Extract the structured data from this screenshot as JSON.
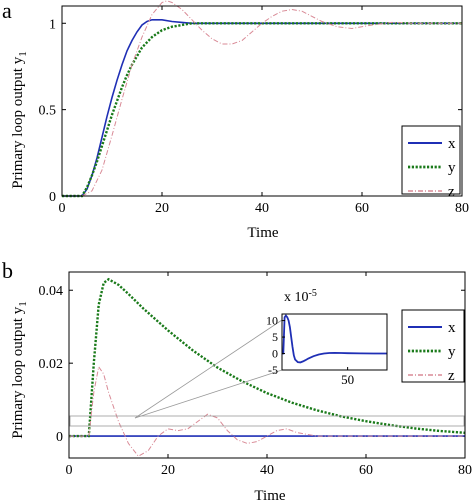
{
  "chart_data": [
    {
      "panel_letter": "a",
      "type": "line",
      "xlabel": "Time",
      "ylabel_main": "Primary loop output y",
      "ylabel_sub": "1",
      "xlim": [
        0,
        80
      ],
      "ylim": [
        0,
        1.1
      ],
      "xticks": [
        0,
        20,
        40,
        60,
        80
      ],
      "yticks": [
        0,
        0.5,
        1
      ],
      "ytick_labels": [
        "0",
        "0.5",
        "1"
      ],
      "legend": "right",
      "series": [
        {
          "name": "x",
          "color": "#1f2fb5",
          "style": "solid",
          "x": [
            0,
            4,
            5,
            6,
            7,
            8,
            9,
            10,
            11,
            12,
            13,
            14,
            15,
            16,
            17,
            18,
            19,
            20,
            22,
            24,
            26,
            28,
            30,
            35,
            40,
            80
          ],
          "y": [
            0,
            0,
            0.04,
            0.12,
            0.22,
            0.34,
            0.46,
            0.57,
            0.67,
            0.76,
            0.84,
            0.9,
            0.95,
            0.99,
            1.01,
            1.02,
            1.02,
            1.02,
            1.01,
            1.005,
            1.0,
            1.0,
            1.0,
            1.0,
            1.0,
            1.0
          ]
        },
        {
          "name": "y",
          "color": "#1a7a1a",
          "style": "dotted",
          "x": [
            0,
            4,
            5,
            6,
            7,
            8,
            9,
            10,
            11,
            12,
            13,
            14,
            15,
            16,
            17,
            18,
            19,
            20,
            22,
            24,
            26,
            28,
            30,
            35,
            40,
            80
          ],
          "y": [
            0,
            0,
            0.05,
            0.12,
            0.2,
            0.29,
            0.38,
            0.47,
            0.55,
            0.63,
            0.7,
            0.76,
            0.81,
            0.86,
            0.89,
            0.92,
            0.94,
            0.96,
            0.98,
            0.99,
            1.0,
            1.0,
            1.0,
            1.0,
            1.0,
            1.0
          ]
        },
        {
          "name": "z",
          "color": "#d98a96",
          "style": "dashdot",
          "x": [
            0,
            4,
            6,
            8,
            10,
            12,
            14,
            16,
            18,
            20,
            21,
            22,
            24,
            26,
            28,
            30,
            32,
            34,
            36,
            38,
            40,
            42,
            44,
            46,
            48,
            50,
            52,
            55,
            58,
            62,
            66,
            70,
            80
          ],
          "y": [
            0,
            0,
            0.03,
            0.15,
            0.35,
            0.56,
            0.76,
            0.92,
            1.05,
            1.12,
            1.13,
            1.12,
            1.08,
            1.02,
            0.96,
            0.91,
            0.88,
            0.88,
            0.9,
            0.95,
            1.0,
            1.04,
            1.07,
            1.08,
            1.07,
            1.04,
            1.01,
            0.98,
            0.97,
            0.99,
            1.005,
            1.0,
            1.0
          ]
        }
      ]
    },
    {
      "panel_letter": "b",
      "type": "line",
      "xlabel": "Time",
      "ylabel_main": "Primary loop output y",
      "ylabel_sub": "1",
      "xlim": [
        0,
        80
      ],
      "ylim": [
        -0.006,
        0.045
      ],
      "xticks": [
        0,
        20,
        40,
        60,
        80
      ],
      "yticks": [
        0,
        0.02,
        0.04
      ],
      "ytick_labels": [
        "0",
        "0.02",
        "0.04"
      ],
      "legend": "right",
      "series": [
        {
          "name": "x",
          "color": "#1f2fb5",
          "style": "solid",
          "x": [
            0,
            80
          ],
          "y": [
            0,
            0
          ]
        },
        {
          "name": "y",
          "color": "#1a7a1a",
          "style": "dotted",
          "x": [
            0,
            4,
            5,
            6,
            7,
            8,
            10,
            12,
            15,
            20,
            25,
            30,
            35,
            40,
            45,
            50,
            55,
            60,
            65,
            70,
            75,
            80
          ],
          "y": [
            0,
            0,
            0.02,
            0.036,
            0.042,
            0.043,
            0.0415,
            0.039,
            0.035,
            0.029,
            0.0235,
            0.0188,
            0.015,
            0.0118,
            0.0092,
            0.0071,
            0.0054,
            0.0041,
            0.003,
            0.0021,
            0.0014,
            0.0009
          ]
        },
        {
          "name": "z",
          "color": "#d98a96",
          "style": "dashdot",
          "x": [
            0,
            4,
            5,
            6,
            7,
            8,
            10,
            12,
            14,
            16,
            18,
            20,
            22,
            24,
            26,
            28,
            30,
            32,
            34,
            36,
            38,
            40,
            42,
            44,
            46,
            48,
            50,
            55,
            60,
            65,
            70,
            80
          ],
          "y": [
            0,
            0,
            0.012,
            0.019,
            0.017,
            0.012,
            0.004,
            -0.002,
            -0.0055,
            -0.004,
            0,
            0.002,
            0.0015,
            0.002,
            0.004,
            0.006,
            0.005,
            0.0015,
            -0.001,
            -0.002,
            -0.0015,
            0,
            0.0015,
            0.002,
            0.001,
            0.0005,
            0,
            0,
            0,
            0,
            0,
            0
          ]
        }
      ],
      "inset": {
        "tick_exponent_label": "x 10",
        "tick_exponent_power": "-5",
        "xlim": [
          0,
          80
        ],
        "ylim": [
          -5,
          12
        ],
        "xticks": [
          50
        ],
        "yticks": [
          -5,
          0,
          5,
          10
        ],
        "series": [
          {
            "name": "x",
            "color": "#1f2fb5",
            "style": "solid",
            "x": [
              0,
              1,
              2,
              3,
              4,
              5,
              6,
              7,
              8,
              9,
              10,
              12,
              14,
              16,
              18,
              20,
              24,
              28,
              32,
              36,
              40,
              45,
              50,
              60,
              70,
              80
            ],
            "y": [
              0,
              0,
              11,
              11.5,
              11.0,
              10.0,
              8.0,
              5.0,
              2.0,
              -0.5,
              -1.8,
              -2.6,
              -2.7,
              -2.4,
              -2.0,
              -1.5,
              -0.8,
              -0.3,
              0,
              0.15,
              0.2,
              0.15,
              0.1,
              0.05,
              0,
              0
            ]
          }
        ]
      }
    }
  ]
}
